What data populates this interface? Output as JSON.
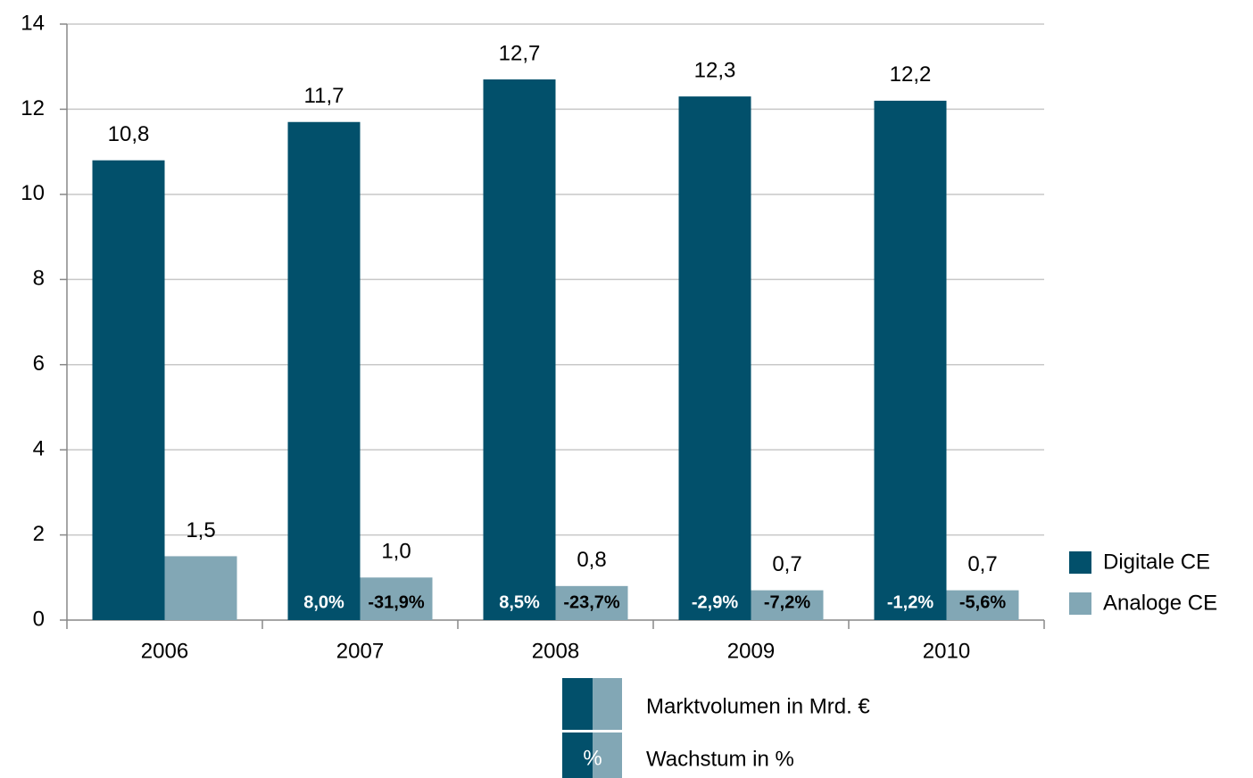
{
  "chart_data": {
    "type": "bar",
    "categories": [
      "2006",
      "2007",
      "2008",
      "2009",
      "2010"
    ],
    "series": [
      {
        "name": "Digitale CE",
        "color": "#02506b",
        "values": [
          10.8,
          11.7,
          12.7,
          12.3,
          12.2
        ],
        "value_labels": [
          "10,8",
          "11,7",
          "12,7",
          "12,3",
          "12,2"
        ],
        "growth": [
          null,
          8.0,
          8.5,
          -2.9,
          -1.2
        ],
        "growth_labels": [
          null,
          "8,0%",
          "8,5%",
          "-2,9%",
          "-1,2%"
        ]
      },
      {
        "name": "Analoge CE",
        "color": "#82a7b5",
        "values": [
          1.5,
          1.0,
          0.8,
          0.7,
          0.7
        ],
        "value_labels": [
          "1,5",
          "1,0",
          "0,8",
          "0,7",
          "0,7"
        ],
        "growth": [
          null,
          -31.9,
          -23.7,
          -7.2,
          -5.6
        ],
        "growth_labels": [
          null,
          "-31,9%",
          "-23,7%",
          "-7,2%",
          "-5,6%"
        ]
      }
    ],
    "ylim": [
      0,
      14
    ],
    "yticks": [
      0,
      2,
      4,
      6,
      8,
      10,
      12,
      14
    ],
    "grid": true,
    "legend": "right",
    "key": {
      "symbol": "%",
      "labels": [
        "Marktvolumen in Mrd. €",
        "Wachstum in %"
      ]
    }
  }
}
